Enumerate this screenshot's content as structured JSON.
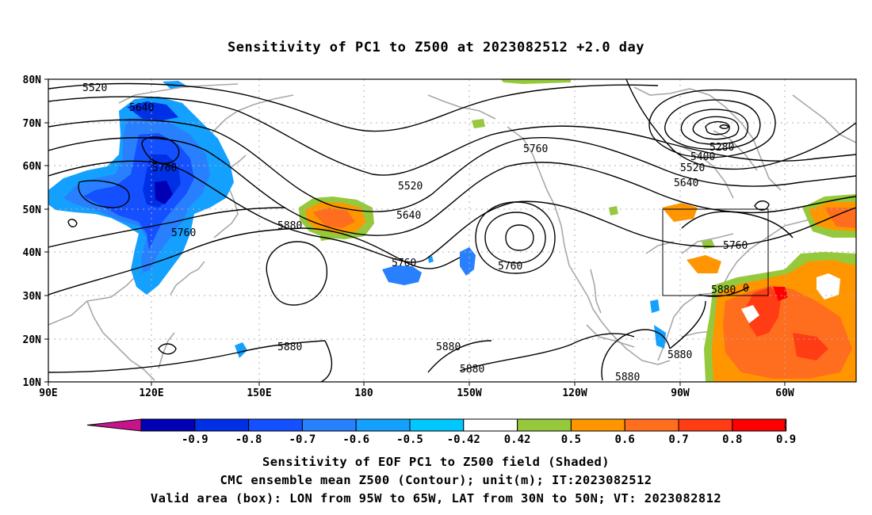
{
  "title": "Sensitivity of PC1 to Z500 at 2023082512 +2.0 day",
  "map": {
    "lat_ticks": [
      "80N",
      "70N",
      "60N",
      "50N",
      "40N",
      "30N",
      "20N",
      "10N"
    ],
    "lon_ticks": [
      "90E",
      "120E",
      "150E",
      "180",
      "150W",
      "120W",
      "90W",
      "60W"
    ],
    "contour_labels": [
      "5520",
      "5640",
      "5760",
      "5760",
      "5880",
      "5520",
      "5640",
      "5760",
      "5760",
      "5760",
      "5280",
      "5400",
      "5520",
      "5640",
      "5760",
      "5880",
      "5880",
      "5880",
      "5880",
      "5880",
      "5880",
      "0"
    ],
    "valid_box": {
      "lon": "95W to 65W",
      "lat": "30N to 50N"
    }
  },
  "colorbar": {
    "labels": [
      "-0.9",
      "-0.8",
      "-0.7",
      "-0.6",
      "-0.5",
      "-0.42",
      "0.42",
      "0.5",
      "0.6",
      "0.7",
      "0.8",
      "0.9"
    ],
    "colors": [
      "#0000b4",
      "#0030e6",
      "#1450ff",
      "#2880ff",
      "#14a0ff",
      "#00c8ff",
      "#ffffff",
      "#96c83c",
      "#ff9600",
      "#ff6e1e",
      "#ff3c14",
      "#ff0000"
    ],
    "low_end_color": "#c8148c",
    "high_end_color": "#ffa0c8"
  },
  "captions": [
    "Sensitivity of EOF PC1 to Z500 field (Shaded)",
    "CMC ensemble mean Z500 (Contour); unit(m); IT:2023082512",
    "Valid area (box): LON from 95W to 65W, LAT from 30N to 50N; VT: 2023082812"
  ]
}
